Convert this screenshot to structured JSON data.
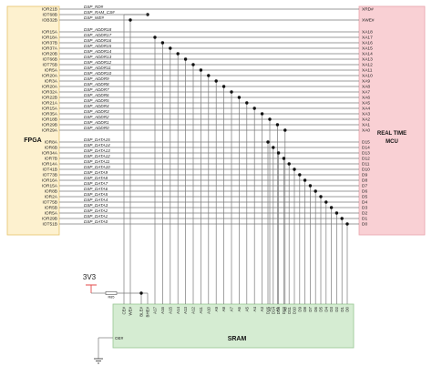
{
  "fpga": {
    "title": "FPGA",
    "pins": [
      "IOR21B",
      "IOT68B",
      "IOB32B",
      "IOR15A",
      "IOR18A",
      "IOR37B",
      "IOR37A",
      "IOR20B",
      "IOT66B",
      "IOT75B",
      "IOR5A",
      "IOR20A",
      "IOR3A",
      "IOR20A",
      "IOR32A",
      "IOR22B",
      "IOR21A",
      "IOR15A",
      "IOR35A",
      "IOR18B",
      "IOR29B",
      "IOR29A",
      "IOR8A",
      "IOR6B",
      "IOR34A",
      "IOR7B",
      "IOR14A",
      "IOT41B",
      "IOT73B",
      "IOR16A",
      "IOR15A",
      "IOR8B",
      "IOR2A",
      "IOT75B",
      "IOR5B",
      "IOR5A",
      "IOR29B",
      "IOT51B"
    ]
  },
  "mcu": {
    "title_line1": "REAL TIME",
    "title_line2": "MCU",
    "pins": [
      "XRD#",
      "XWE#",
      "XA18",
      "XA17",
      "XA16",
      "XA15",
      "XA14",
      "XA13",
      "XA12",
      "XA11",
      "XA10",
      "XA9",
      "XA8",
      "XA7",
      "XA6",
      "XA5",
      "XA4",
      "XA3",
      "XA2",
      "XA1",
      "XA0",
      "D15",
      "D14",
      "D13",
      "D12",
      "D11",
      "D10",
      "D9",
      "D8",
      "D7",
      "D6",
      "D5",
      "D4",
      "D3",
      "D2",
      "D1",
      "D0"
    ]
  },
  "nets": [
    "DSP_RD#",
    "DSP_RAM_CS#",
    "DSP_WE#",
    "DSP_ADDR18",
    "DSP_ADDR17",
    "DSP_ADDR16",
    "DSP_ADDR15",
    "DSP_ADDR14",
    "DSP_ADDR13",
    "DSP_ADDR12",
    "DSP_ADDR11",
    "DSP_ADDR10",
    "DSP_ADDR9",
    "DSP_ADDR8",
    "DSP_ADDR7",
    "DSP_ADDR6",
    "DSP_ADDR5",
    "DSP_ADDR4",
    "DSP_ADDR3",
    "DSP_ADDR2",
    "DSP_ADDR1",
    "DSP_ADDR0",
    "DSP_DATA15",
    "DSP_DATA14",
    "DSP_DATA13",
    "DSP_DATA12",
    "DSP_DATA11",
    "DSP_DATA10",
    "DSP_DATA9",
    "DSP_DATA8",
    "DSP_DATA7",
    "DSP_DATA6",
    "DSP_DATA5",
    "DSP_DATA4",
    "DSP_DATA3",
    "DSP_DATA2",
    "DSP_DATA1",
    "DSP_DATA0"
  ],
  "sram": {
    "title": "SRAM",
    "pins": [
      "CE#",
      "WE#",
      "BLE#",
      "BHE#",
      "A17",
      "A16",
      "A15",
      "A14",
      "A13",
      "A12",
      "A11",
      "A10",
      "A9",
      "A8",
      "A7",
      "A6",
      "A5",
      "A4",
      "A3",
      "A2",
      "A1",
      "A0",
      "D15",
      "D14",
      "D13",
      "D12",
      "D11",
      "D10",
      "D9",
      "D8",
      "D7",
      "D6",
      "D5",
      "D4",
      "D3",
      "D2",
      "D1",
      "D0"
    ],
    "oe_pin": "OE#"
  },
  "power": {
    "label": "3V3",
    "resistor": "R85"
  },
  "colors": {
    "fpga_fill": "#fdf1cf",
    "fpga_stroke": "#e6c36a",
    "mcu_fill": "#f9d0d4",
    "mcu_stroke": "#e9a3aa",
    "sram_fill": "#d5ecd2",
    "sram_stroke": "#98c793",
    "wire": "#7a7a7a",
    "power": "#e34a4a"
  }
}
